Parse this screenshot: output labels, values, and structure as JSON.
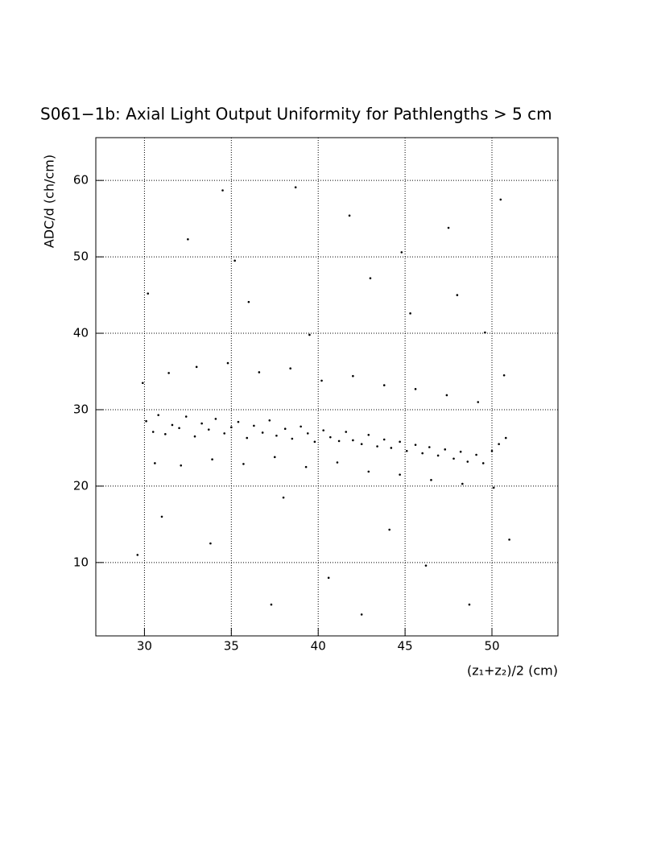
{
  "chart_data": {
    "type": "scatter",
    "title": "S061−1b: Axial Light Output Uniformity for Pathlengths > 5 cm",
    "x_label": "(z₁+z₂)/2 (cm)",
    "y_label": "ADC/d (ch/cm)",
    "color": "#000000",
    "grid": true,
    "xlim": [
      27.2,
      53.8
    ],
    "ylim": [
      0.4,
      65.6
    ],
    "xticks": [
      30,
      35,
      40,
      45,
      50
    ],
    "yticks": [
      10,
      20,
      30,
      40,
      50,
      60
    ],
    "x": [
      30.1,
      30.5,
      30.8,
      31.2,
      31.6,
      32.0,
      32.4,
      32.9,
      33.3,
      33.7,
      34.1,
      34.6,
      35.0,
      35.4,
      35.9,
      36.3,
      36.8,
      37.2,
      37.6,
      38.1,
      38.5,
      39.0,
      39.4,
      39.8,
      40.3,
      40.7,
      41.2,
      41.6,
      42.0,
      42.5,
      42.9,
      43.4,
      43.8,
      44.2,
      44.7,
      45.1,
      45.6,
      46.0,
      46.4,
      46.9,
      47.3,
      47.8,
      48.2,
      48.6,
      49.1,
      49.5,
      50.0,
      50.4,
      50.8,
      29.9,
      30.6,
      31.4,
      32.1,
      33.0,
      33.9,
      34.8,
      35.7,
      36.6,
      37.5,
      38.4,
      39.3,
      40.2,
      41.1,
      42.0,
      42.9,
      43.8,
      44.7,
      45.6,
      46.5,
      47.4,
      48.3,
      49.2,
      50.1,
      50.7,
      30.2,
      31.0,
      32.5,
      33.8,
      34.5,
      36.0,
      37.3,
      38.7,
      39.5,
      40.6,
      41.8,
      43.0,
      44.1,
      45.3,
      46.2,
      47.5,
      48.7,
      49.6,
      50.5,
      51.0,
      29.6,
      35.2,
      42.5,
      48.0,
      38.0,
      44.8
    ],
    "values": [
      28.5,
      27.1,
      29.3,
      26.8,
      28.0,
      27.6,
      29.1,
      26.5,
      28.2,
      27.4,
      28.8,
      26.9,
      27.7,
      28.4,
      26.3,
      27.9,
      27.0,
      28.6,
      26.6,
      27.5,
      26.2,
      27.8,
      26.9,
      25.8,
      27.3,
      26.4,
      25.9,
      27.1,
      26.0,
      25.5,
      26.7,
      25.2,
      26.1,
      25.0,
      25.8,
      24.6,
      25.4,
      24.3,
      25.1,
      24.0,
      24.8,
      23.6,
      24.5,
      23.2,
      24.1,
      23.0,
      24.6,
      25.5,
      26.3,
      33.5,
      23.0,
      34.8,
      22.7,
      35.6,
      23.5,
      36.1,
      22.9,
      34.9,
      23.8,
      35.4,
      22.5,
      33.8,
      23.1,
      34.4,
      21.9,
      33.2,
      21.5,
      32.7,
      20.8,
      31.9,
      20.3,
      31.0,
      19.8,
      34.5,
      45.2,
      16.0,
      52.3,
      12.5,
      58.7,
      44.1,
      4.5,
      59.1,
      39.8,
      8.0,
      55.4,
      47.2,
      14.3,
      42.6,
      9.6,
      53.8,
      4.5,
      40.1,
      57.5,
      13.0,
      11.0,
      49.5,
      3.2,
      45.0,
      18.5,
      50.6
    ]
  }
}
